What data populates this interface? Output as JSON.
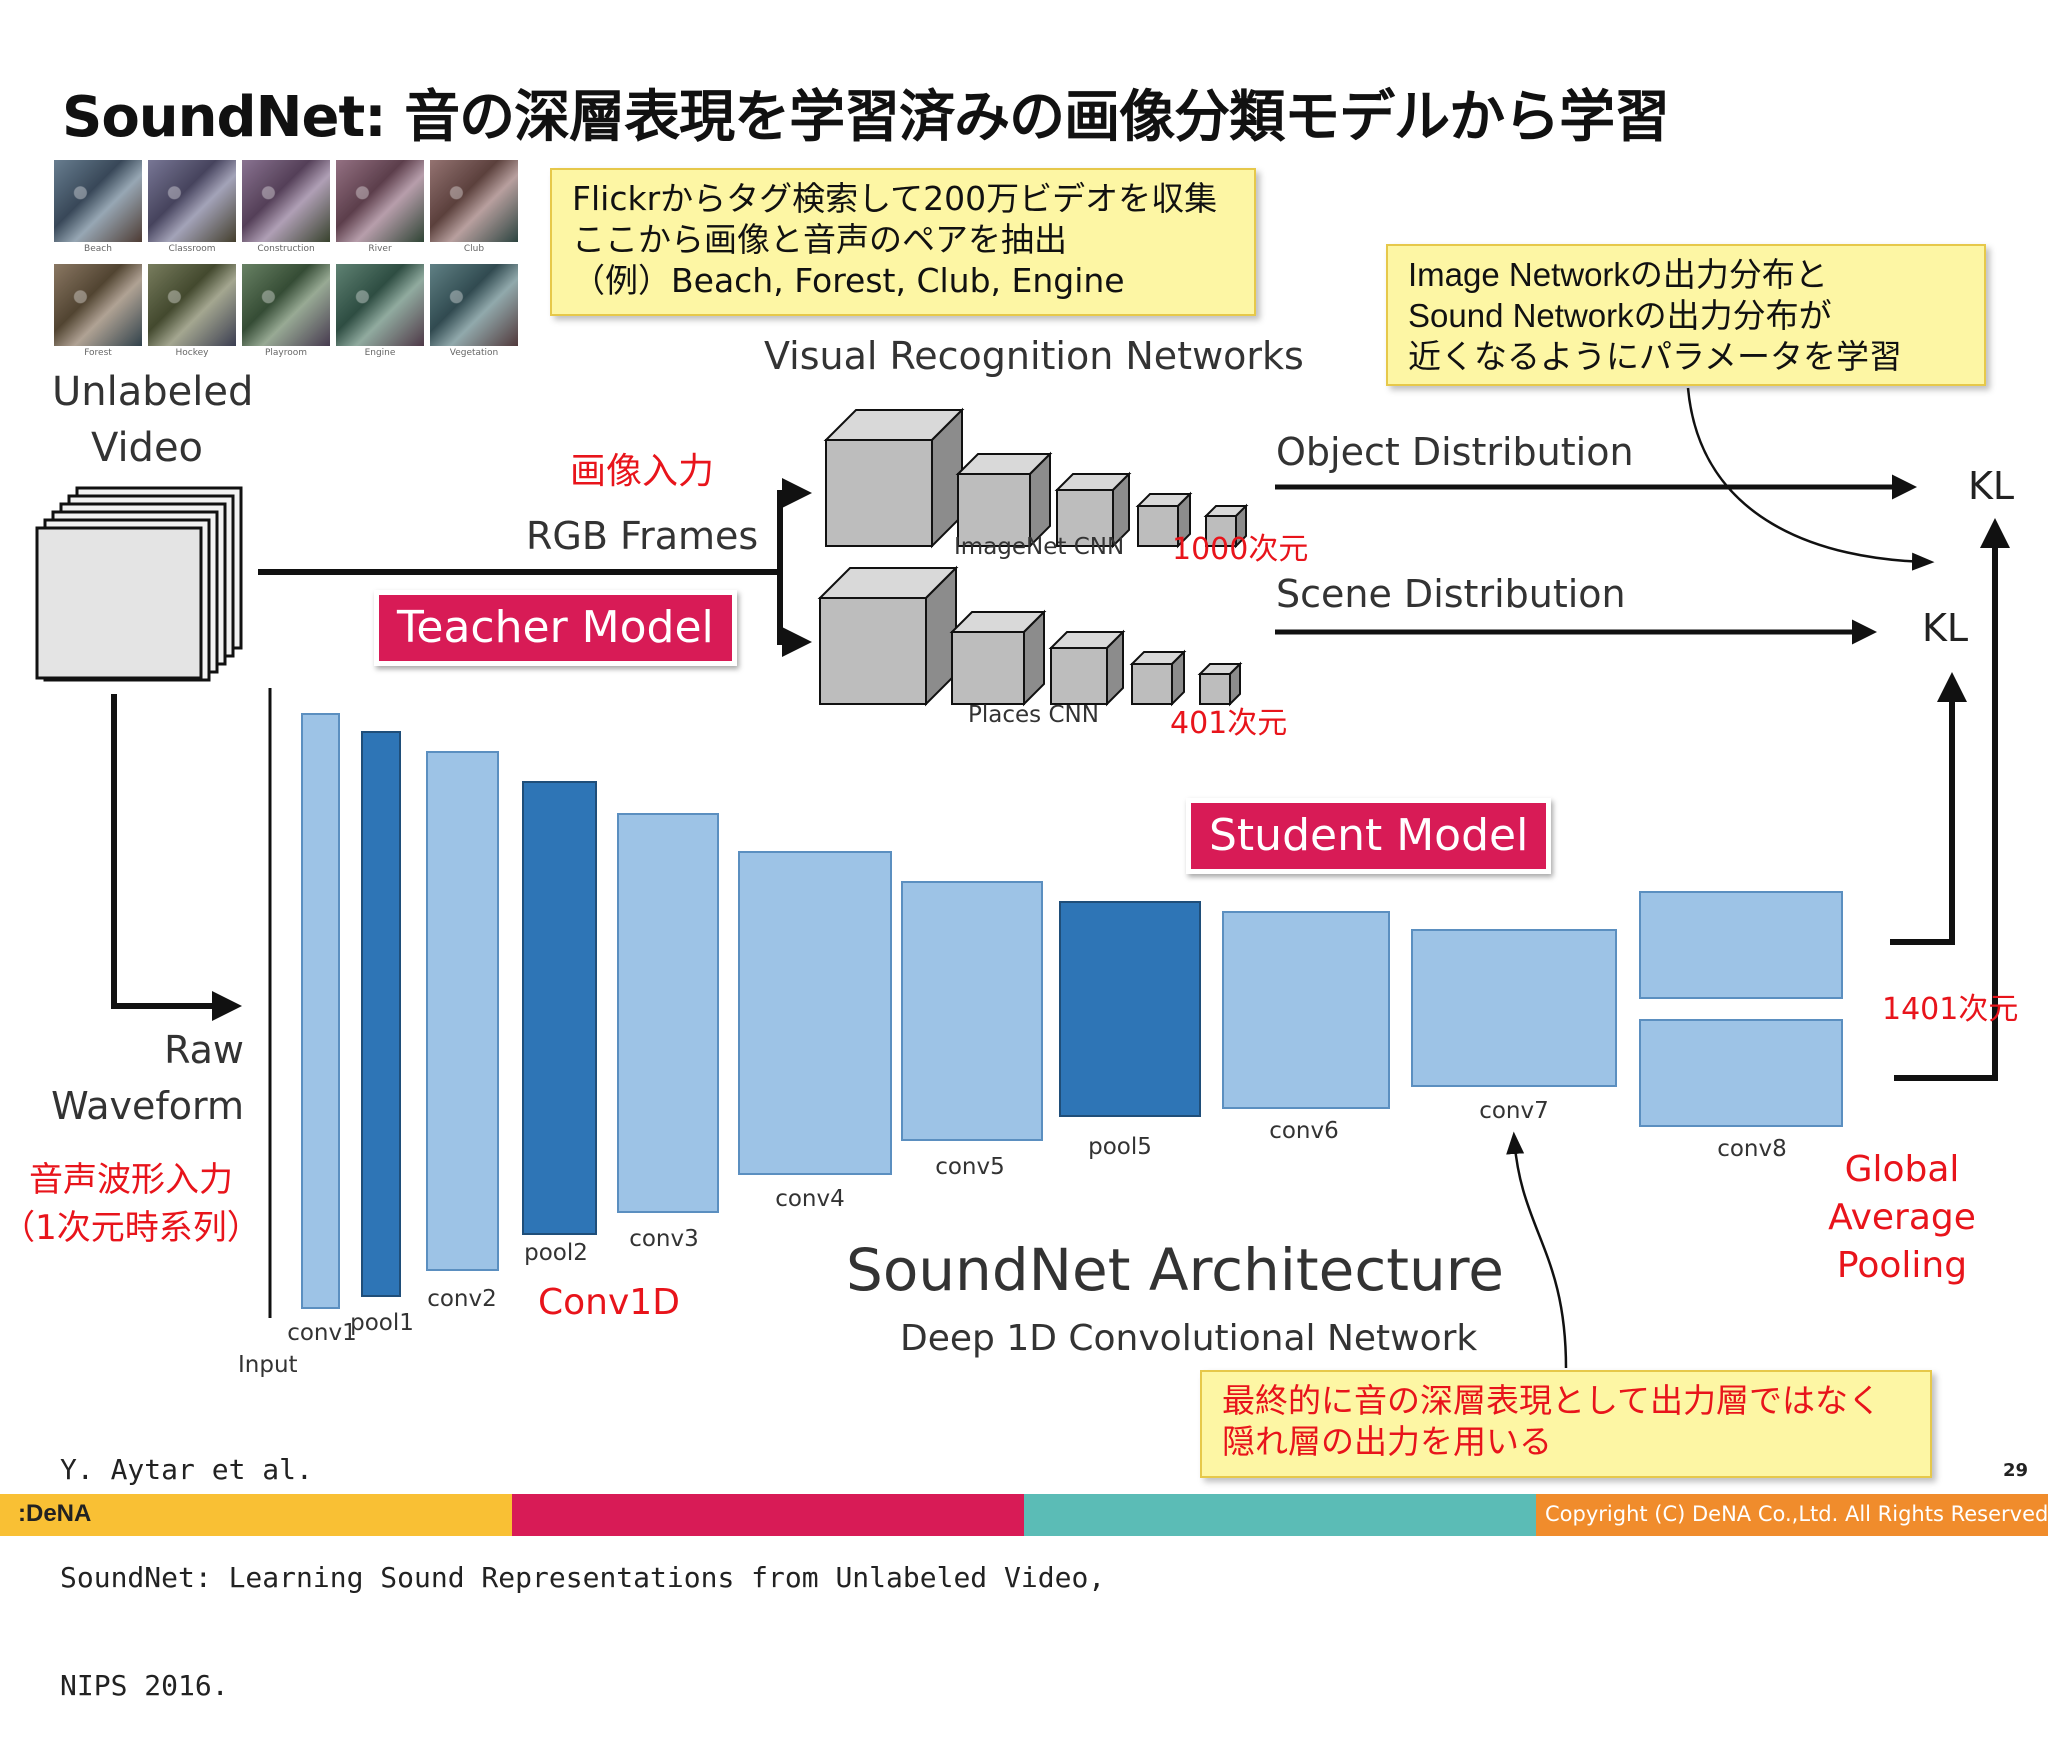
{
  "title": "SoundNet: 音の深層表現を学習済みの画像分類モデルから学習",
  "callouts": {
    "flickr": [
      "Flickrからタグ検索して200万ビデオを収集",
      "ここから画像と音声のペアを抽出",
      "（例）Beach, Forest, Club, Engine"
    ],
    "kl_note": [
      "Image Networkの出力分布と",
      "Sound Networkの出力分布が",
      "近くなるようにパラメータを学習"
    ],
    "hidden_note": [
      "最終的に音の深層表現として出力層ではなく",
      "隠れ層の出力を用いる"
    ]
  },
  "tags": {
    "teacher": "Teacher Model",
    "student": "Student Model"
  },
  "thumbnails": [
    "Beach",
    "Classroom",
    "Construction",
    "River",
    "Club",
    "Forest",
    "Hockey",
    "Playroom",
    "Engine",
    "Vegetation"
  ],
  "diagram": {
    "unlabeled_video": [
      "Unlabeled",
      "Video"
    ],
    "visual_networks": "Visual Recognition Networks",
    "image_input": "画像入力",
    "rgb_frames": "RGB Frames",
    "imagenet_cnn": "ImageNet CNN",
    "places_cnn": "Places CNN",
    "dim_1000": "1000次元",
    "dim_401": "401次元",
    "object_distribution": "Object Distribution",
    "scene_distribution": "Scene Distribution",
    "kl_top": "KL",
    "kl_bottom": "KL",
    "raw_waveform": [
      "Raw",
      "Waveform"
    ],
    "audio_input": [
      "音声波形入力",
      "（1次元時系列）"
    ],
    "input_label": "Input",
    "conv1d": "Conv1D",
    "dim_1401": "1401次元",
    "gap": [
      "Global",
      "Average",
      "Pooling"
    ],
    "arch_title": "SoundNet Architecture",
    "arch_subtitle": "Deep 1D Convolutional Network",
    "layers": [
      {
        "name": "conv1",
        "kind": "conv"
      },
      {
        "name": "pool1",
        "kind": "pool"
      },
      {
        "name": "conv2",
        "kind": "conv"
      },
      {
        "name": "pool2",
        "kind": "pool"
      },
      {
        "name": "conv3",
        "kind": "conv"
      },
      {
        "name": "conv4",
        "kind": "conv"
      },
      {
        "name": "conv5",
        "kind": "conv"
      },
      {
        "name": "pool5",
        "kind": "pool"
      },
      {
        "name": "conv6",
        "kind": "conv"
      },
      {
        "name": "conv7",
        "kind": "conv"
      },
      {
        "name": "conv8",
        "kind": "conv"
      }
    ]
  },
  "citation": [
    "Y. Aytar et al.",
    "SoundNet: Learning Sound Representations from Unlabeled Video,",
    "NIPS 2016."
  ],
  "page_number": "29",
  "footer": {
    "logo": ":DeNA",
    "copyright": "Copyright (C) DeNA Co.,Ltd. All Rights Reserved."
  },
  "colors": {
    "conv": "#9dc3e6",
    "pool": "#2e75b6",
    "tag": "#d81b56",
    "callout": "#fdf6a4",
    "accent_red": "#e8141b",
    "footer": [
      "#f9c034",
      "#d81b56",
      "#5bbcb6",
      "#f08c2c"
    ]
  }
}
